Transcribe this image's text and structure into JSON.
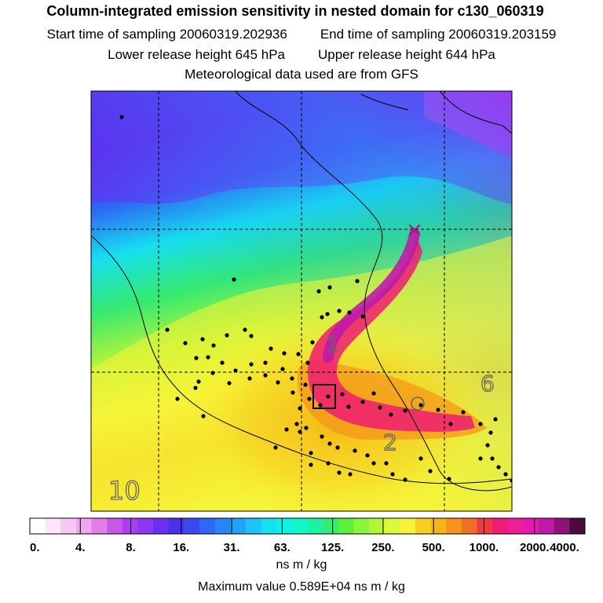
{
  "header": {
    "title": "Column-integrated emission sensitivity in nested domain for c130_060319",
    "start_label": "Start time of sampling 20060319.202936",
    "end_label": "End time of sampling 20060319.203159",
    "lower_label": "Lower release height  645 hPa",
    "upper_label": "Upper release height  644 hPa",
    "met_label": "Meteorological data used are from GFS"
  },
  "chart_data": {
    "type": "heatmap",
    "title": "Column-integrated emission sensitivity in nested domain for c130_060319",
    "colorbar": {
      "tick_labels": [
        "0.",
        "4.",
        "8.",
        "16.",
        "31.",
        "63.",
        "125.",
        "250.",
        "500.",
        "1000.",
        "2000.",
        "4000."
      ],
      "units": "ns m / kg",
      "colors": [
        "#ffffff",
        "#fde6fb",
        "#f8c8f5",
        "#f0a6f0",
        "#e27ee8",
        "#c956e6",
        "#a93ff0",
        "#8a38f2",
        "#6a2ff0",
        "#4a32ec",
        "#3c48f0",
        "#2e68f4",
        "#2a84f6",
        "#24a2f8",
        "#1fc2f6",
        "#15dff0",
        "#0cf2e6",
        "#10f8c8",
        "#1df1a6",
        "#34ea70",
        "#5cf03c",
        "#8cf43a",
        "#b6f43a",
        "#dcf83a",
        "#f6f438",
        "#f6d020",
        "#f6b418",
        "#f49418",
        "#f26e24",
        "#f03a40",
        "#ee1c72",
        "#f01c98",
        "#e41ab0",
        "#c01aa8",
        "#8c1478",
        "#4a0c3c"
      ]
    },
    "max_value_label": "Maximum value  0.589E+04 ns m / kg",
    "contour_labels": [
      "1",
      "2",
      "6",
      "10"
    ],
    "release_marker": "×",
    "grid": true
  }
}
